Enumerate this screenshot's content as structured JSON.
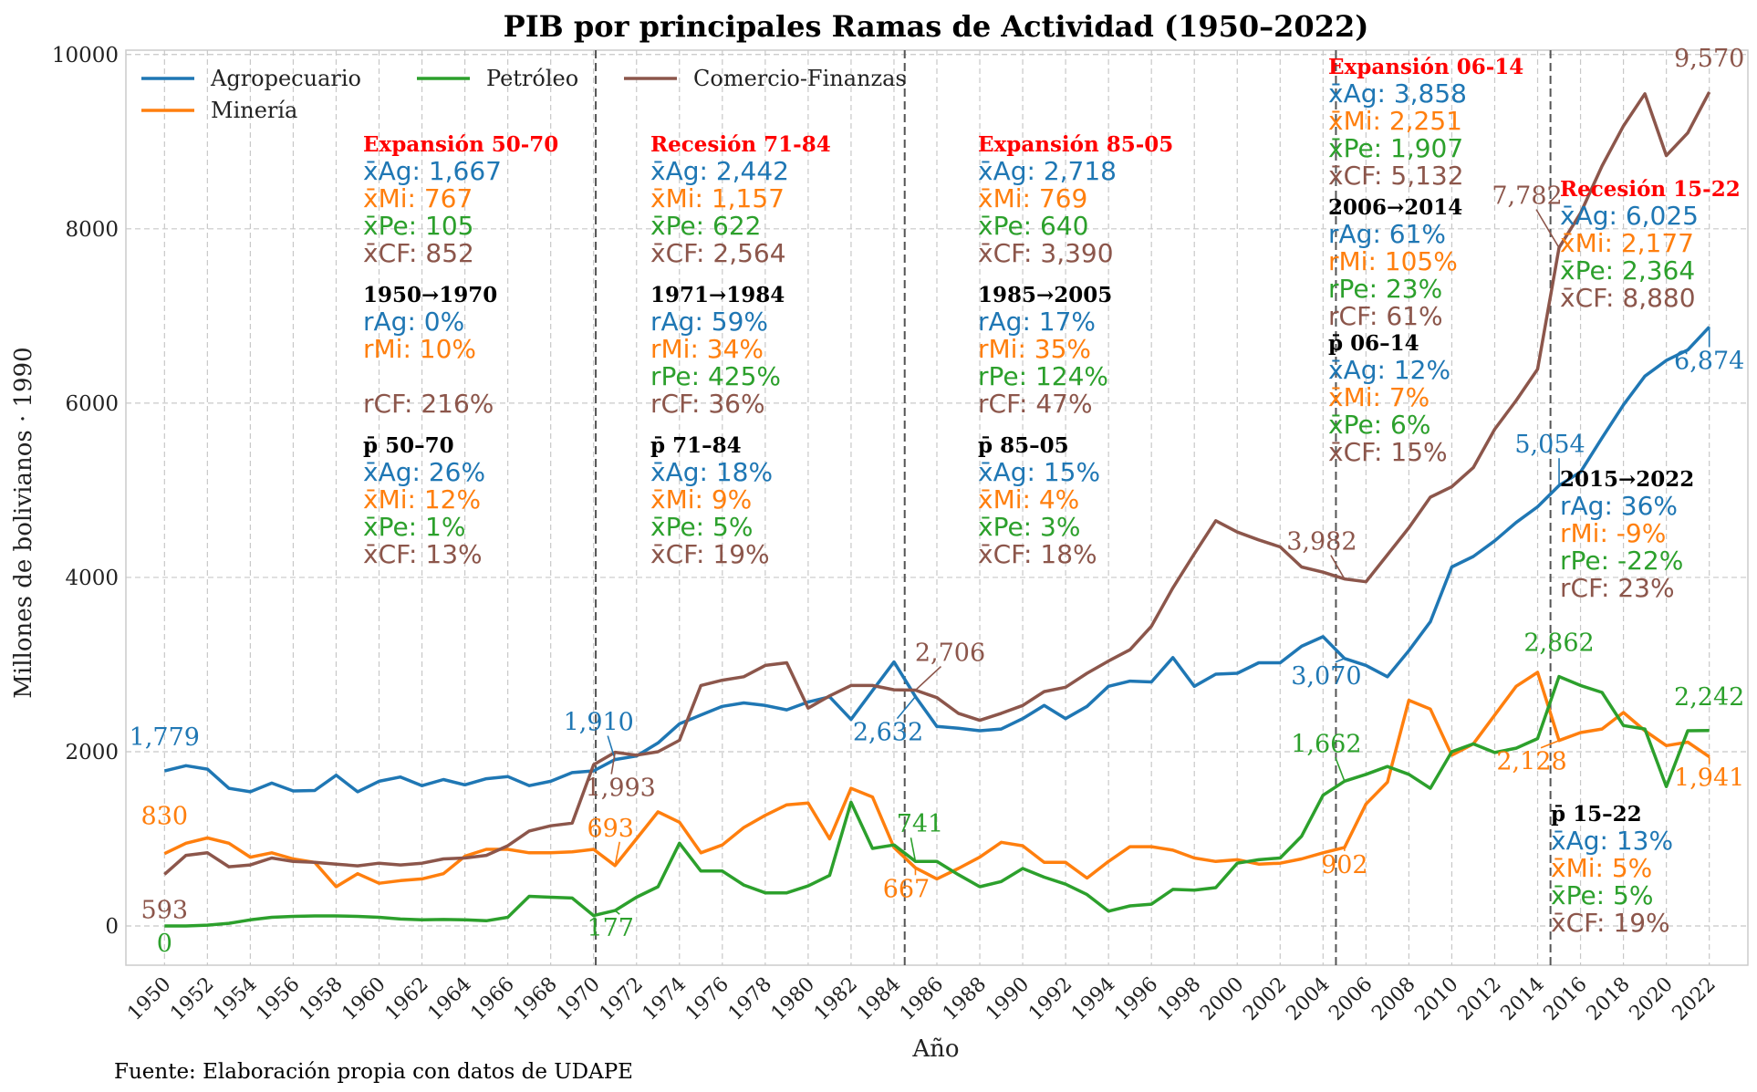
{
  "chart_data": {
    "type": "line",
    "title": "PIB por principales Ramas de Actividad (1950–2022)",
    "xlabel": "Año",
    "ylabel": "Millones de bolivianos · 1990",
    "source": "Fuente: Elaboración propia con datos de UDAPE",
    "xlim": [
      1948.2,
      2023.8
    ],
    "ylim": [
      -450,
      10050
    ],
    "yticks": [
      0,
      2000,
      4000,
      6000,
      8000,
      10000
    ],
    "xticks": [
      1950,
      1952,
      1954,
      1956,
      1958,
      1960,
      1962,
      1964,
      1966,
      1968,
      1970,
      1972,
      1974,
      1976,
      1978,
      1980,
      1982,
      1984,
      1986,
      1988,
      1990,
      1992,
      1994,
      1996,
      1998,
      2000,
      2002,
      2004,
      2006,
      2008,
      2010,
      2012,
      2014,
      2016,
      2018,
      2020,
      2022
    ],
    "grid": true,
    "legend_position": "top-left",
    "period_lines": [
      1970.1,
      1984.5,
      2004.6,
      2014.6
    ],
    "x": [
      1950,
      1951,
      1952,
      1953,
      1954,
      1955,
      1956,
      1957,
      1958,
      1959,
      1960,
      1961,
      1962,
      1963,
      1964,
      1965,
      1966,
      1967,
      1968,
      1969,
      1970,
      1971,
      1972,
      1973,
      1974,
      1975,
      1976,
      1977,
      1978,
      1979,
      1980,
      1981,
      1982,
      1983,
      1984,
      1985,
      1986,
      1987,
      1988,
      1989,
      1990,
      1991,
      1992,
      1993,
      1994,
      1995,
      1996,
      1997,
      1998,
      1999,
      2000,
      2001,
      2002,
      2003,
      2004,
      2005,
      2006,
      2007,
      2008,
      2009,
      2010,
      2011,
      2012,
      2013,
      2014,
      2015,
      2016,
      2017,
      2018,
      2019,
      2020,
      2021,
      2022
    ],
    "series": [
      {
        "name": "Agropecuario",
        "color": "#1f77b4",
        "values": [
          1779,
          1840,
          1800,
          1580,
          1540,
          1640,
          1550,
          1555,
          1730,
          1540,
          1660,
          1710,
          1610,
          1680,
          1620,
          1690,
          1715,
          1610,
          1660,
          1760,
          1780,
          1910,
          1950,
          2100,
          2320,
          2420,
          2520,
          2560,
          2530,
          2480,
          2570,
          2630,
          2370,
          2700,
          3030,
          2632,
          2290,
          2270,
          2240,
          2260,
          2380,
          2530,
          2380,
          2520,
          2750,
          2810,
          2800,
          3080,
          2750,
          2890,
          2900,
          3020,
          3020,
          3210,
          3320,
          3070,
          2990,
          2860,
          3160,
          3490,
          4120,
          4240,
          4420,
          4630,
          4810,
          5054,
          5210,
          5600,
          5980,
          6310,
          6490,
          6610,
          6874
        ]
      },
      {
        "name": "Minería",
        "color": "#ff7f0e",
        "values": [
          830,
          950,
          1010,
          950,
          790,
          840,
          770,
          730,
          450,
          600,
          490,
          520,
          540,
          600,
          800,
          880,
          880,
          840,
          840,
          850,
          880,
          693,
          1000,
          1310,
          1190,
          840,
          930,
          1130,
          1270,
          1390,
          1410,
          1000,
          1580,
          1480,
          900,
          667,
          540,
          660,
          790,
          960,
          920,
          730,
          730,
          550,
          740,
          910,
          910,
          870,
          780,
          740,
          760,
          710,
          720,
          770,
          840,
          902,
          1400,
          1650,
          2590,
          2490,
          1960,
          2090,
          2420,
          2750,
          2910,
          2128,
          2220,
          2260,
          2450,
          2240,
          2070,
          2110,
          1941
        ]
      },
      {
        "name": "Petróleo",
        "color": "#2ca02c",
        "values": [
          0,
          0,
          10,
          30,
          70,
          100,
          110,
          115,
          115,
          110,
          100,
          80,
          70,
          75,
          70,
          60,
          100,
          340,
          330,
          320,
          120,
          177,
          330,
          450,
          950,
          630,
          630,
          470,
          380,
          380,
          460,
          580,
          1420,
          890,
          930,
          741,
          740,
          590,
          450,
          510,
          660,
          560,
          480,
          360,
          170,
          230,
          250,
          420,
          410,
          440,
          720,
          760,
          780,
          1030,
          1500,
          1662,
          1740,
          1830,
          1740,
          1580,
          2000,
          2090,
          1990,
          2040,
          2150,
          2862,
          2760,
          2680,
          2300,
          2260,
          1600,
          2240,
          2242
        ]
      },
      {
        "name": "Comercio-Finanzas",
        "color": "#8c564b",
        "values": [
          593,
          810,
          840,
          680,
          700,
          780,
          740,
          730,
          710,
          690,
          720,
          700,
          720,
          770,
          780,
          810,
          920,
          1090,
          1150,
          1180,
          1850,
          1993,
          1960,
          2000,
          2130,
          2760,
          2820,
          2860,
          2990,
          3020,
          2500,
          2640,
          2760,
          2760,
          2710,
          2706,
          2620,
          2440,
          2360,
          2440,
          2530,
          2690,
          2740,
          2900,
          3040,
          3170,
          3440,
          3880,
          4270,
          4650,
          4520,
          4430,
          4350,
          4120,
          4060,
          3982,
          3950,
          4260,
          4570,
          4920,
          5040,
          5260,
          5700,
          6030,
          6390,
          7782,
          8180,
          8720,
          9180,
          9550,
          8840,
          9100,
          9570
        ]
      }
    ],
    "point_labels": [
      {
        "series": 0,
        "text": "1,779"
      },
      {
        "series": 1,
        "text": "830"
      },
      {
        "series": 3,
        "text": "593"
      },
      {
        "series": 2,
        "text": "0"
      },
      {
        "series": 0,
        "text": "1,910"
      },
      {
        "series": 3,
        "text": "1,993"
      },
      {
        "series": 1,
        "text": "693"
      },
      {
        "series": 2,
        "text": "177"
      },
      {
        "series": 3,
        "text": "2,706"
      },
      {
        "series": 0,
        "text": "2,632"
      },
      {
        "series": 2,
        "text": "741"
      },
      {
        "series": 1,
        "text": "667"
      },
      {
        "series": 3,
        "text": "3,982"
      },
      {
        "series": 0,
        "text": "3,070"
      },
      {
        "series": 2,
        "text": "1,662"
      },
      {
        "series": 1,
        "text": "902"
      },
      {
        "series": 3,
        "text": "7,782"
      },
      {
        "series": 0,
        "text": "5,054"
      },
      {
        "series": 2,
        "text": "2,862"
      },
      {
        "series": 1,
        "text": "2,128"
      },
      {
        "series": 3,
        "text": "9,570"
      },
      {
        "series": 0,
        "text": "6,874"
      },
      {
        "series": 2,
        "text": "2,242"
      },
      {
        "series": 1,
        "text": "1,941"
      }
    ],
    "annotations": [
      {
        "title": "Expansión 50-70",
        "title_color": "#ff0000",
        "lines": [
          {
            "t": "x̄Ag: 1,667",
            "c": 0
          },
          {
            "t": "x̄Mi: 767",
            "c": 1
          },
          {
            "t": "x̄Pe: 105",
            "c": 2
          },
          {
            "t": "x̄CF: 852",
            "c": 3
          }
        ]
      },
      {
        "title": "1950→1970",
        "title_color": "#000000",
        "lines": [
          {
            "t": "rAg: 0%",
            "c": 0
          },
          {
            "t": "rMi: 10%",
            "c": 1
          },
          {
            "t": "",
            "c": 2
          },
          {
            "t": "rCF: 216%",
            "c": 3
          }
        ]
      },
      {
        "title": "p̄ 50–70",
        "title_color": "#000000",
        "lines": [
          {
            "t": "x̄Ag: 26%",
            "c": 0
          },
          {
            "t": "x̄Mi: 12%",
            "c": 1
          },
          {
            "t": "x̄Pe: 1%",
            "c": 2
          },
          {
            "t": "x̄CF: 13%",
            "c": 3
          }
        ]
      },
      {
        "title": "Recesión 71-84",
        "title_color": "#ff0000",
        "lines": [
          {
            "t": "x̄Ag: 2,442",
            "c": 0
          },
          {
            "t": "x̄Mi: 1,157",
            "c": 1
          },
          {
            "t": "x̄Pe: 622",
            "c": 2
          },
          {
            "t": "x̄CF: 2,564",
            "c": 3
          }
        ]
      },
      {
        "title": "1971→1984",
        "title_color": "#000000",
        "lines": [
          {
            "t": "rAg: 59%",
            "c": 0
          },
          {
            "t": "rMi: 34%",
            "c": 1
          },
          {
            "t": "rPe: 425%",
            "c": 2
          },
          {
            "t": "rCF: 36%",
            "c": 3
          }
        ]
      },
      {
        "title": "p̄ 71–84",
        "title_color": "#000000",
        "lines": [
          {
            "t": "x̄Ag: 18%",
            "c": 0
          },
          {
            "t": "x̄Mi: 9%",
            "c": 1
          },
          {
            "t": "x̄Pe: 5%",
            "c": 2
          },
          {
            "t": "x̄CF: 19%",
            "c": 3
          }
        ]
      },
      {
        "title": "Expansión 85-05",
        "title_color": "#ff0000",
        "lines": [
          {
            "t": "x̄Ag: 2,718",
            "c": 0
          },
          {
            "t": "x̄Mi: 769",
            "c": 1
          },
          {
            "t": "x̄Pe: 640",
            "c": 2
          },
          {
            "t": "x̄CF: 3,390",
            "c": 3
          }
        ]
      },
      {
        "title": "1985→2005",
        "title_color": "#000000",
        "lines": [
          {
            "t": "rAg: 17%",
            "c": 0
          },
          {
            "t": "rMi: 35%",
            "c": 1
          },
          {
            "t": "rPe: 124%",
            "c": 2
          },
          {
            "t": "rCF: 47%",
            "c": 3
          }
        ]
      },
      {
        "title": "p̄ 85–05",
        "title_color": "#000000",
        "lines": [
          {
            "t": "x̄Ag: 15%",
            "c": 0
          },
          {
            "t": "x̄Mi: 4%",
            "c": 1
          },
          {
            "t": "x̄Pe: 3%",
            "c": 2
          },
          {
            "t": "x̄CF: 18%",
            "c": 3
          }
        ]
      },
      {
        "title": "Expansión 06-14",
        "title_color": "#ff0000",
        "lines": [
          {
            "t": "x̄Ag: 3,858",
            "c": 0
          },
          {
            "t": "x̄Mi: 2,251",
            "c": 1
          },
          {
            "t": "x̄Pe: 1,907",
            "c": 2
          },
          {
            "t": "x̄CF: 5,132",
            "c": 3
          }
        ]
      },
      {
        "title": "2006→2014",
        "title_color": "#000000",
        "lines": [
          {
            "t": "rAg: 61%",
            "c": 0
          },
          {
            "t": "rMi: 105%",
            "c": 1
          },
          {
            "t": "rPe: 23%",
            "c": 2
          },
          {
            "t": "rCF: 61%",
            "c": 3
          }
        ]
      },
      {
        "title": "p̄ 06–14",
        "title_color": "#000000",
        "lines": [
          {
            "t": "x̄Ag: 12%",
            "c": 0
          },
          {
            "t": "x̄Mi: 7%",
            "c": 1
          },
          {
            "t": "x̄Pe: 6%",
            "c": 2
          },
          {
            "t": "x̄CF: 15%",
            "c": 3
          }
        ]
      },
      {
        "title": "Recesión 15-22",
        "title_color": "#ff0000",
        "lines": [
          {
            "t": "x̄Ag: 6,025",
            "c": 0
          },
          {
            "t": "x̄Mi: 2,177",
            "c": 1
          },
          {
            "t": "x̄Pe: 2,364",
            "c": 2
          },
          {
            "t": "x̄CF: 8,880",
            "c": 3
          }
        ]
      },
      {
        "title": "2015→2022",
        "title_color": "#000000",
        "lines": [
          {
            "t": "rAg: 36%",
            "c": 0
          },
          {
            "t": "rMi: -9%",
            "c": 1
          },
          {
            "t": "rPe: -22%",
            "c": 2
          },
          {
            "t": "rCF: 23%",
            "c": 3
          }
        ]
      },
      {
        "title": "p̄ 15–22",
        "title_color": "#000000",
        "lines": [
          {
            "t": "x̄Ag: 13%",
            "c": 0
          },
          {
            "t": "x̄Mi: 5%",
            "c": 1
          },
          {
            "t": "x̄Pe: 5%",
            "c": 2
          },
          {
            "t": "x̄CF: 19%",
            "c": 3
          }
        ]
      }
    ]
  }
}
